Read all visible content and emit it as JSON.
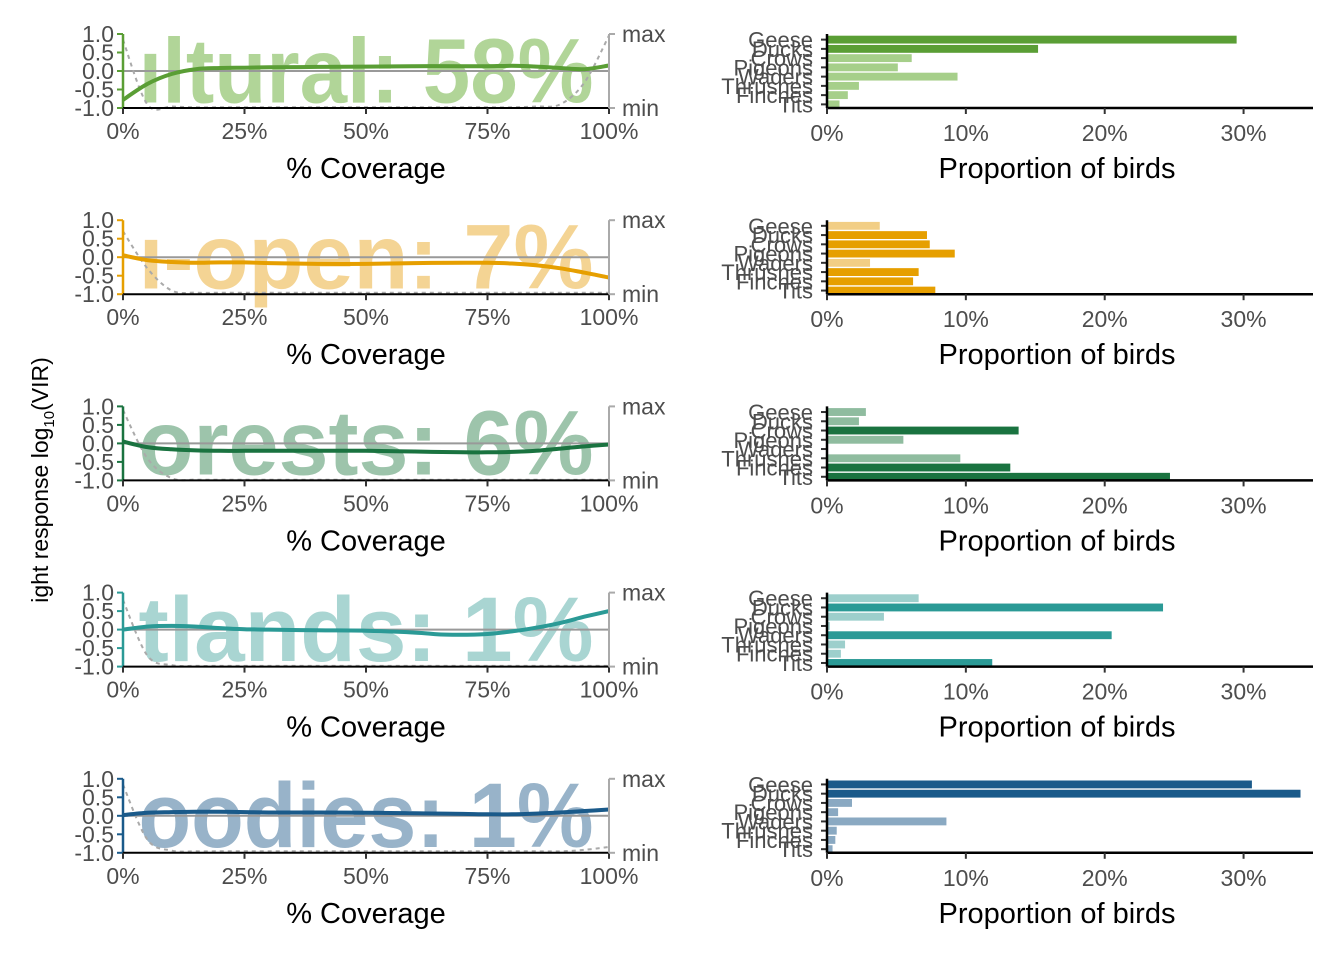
{
  "y_axis_label_main": "ight response log",
  "y_axis_label_sub": "10",
  "y_axis_label_end": "(VIR)",
  "left_xlabel": "% Coverage",
  "right_xlabel": "Proportion of birds",
  "left_x_ticks": [
    "0%",
    "25%",
    "50%",
    "75%",
    "100%"
  ],
  "left_y_ticks": [
    "1.0",
    "0.5",
    "0.0",
    "-0.5",
    "-1.0"
  ],
  "right_axis_ticks": [
    "max",
    "min"
  ],
  "right_x_ticks": [
    "0%",
    "10%",
    "20%",
    "30%"
  ],
  "bird_groups": [
    "Geese",
    "Ducks",
    "Crows",
    "Pigeons",
    "Waders",
    "Thrushes",
    "Finches",
    "Tits"
  ],
  "chart_data": [
    {
      "type": "line",
      "label": "ıltural: 58%",
      "color": "#5a9e35",
      "light_color": "#a6cf8a",
      "x": [
        0,
        5,
        10,
        15,
        20,
        25,
        30,
        40,
        50,
        60,
        70,
        75,
        80,
        85,
        90,
        95,
        100
      ],
      "y": [
        -0.78,
        -0.35,
        -0.08,
        0.05,
        0.08,
        0.09,
        0.1,
        0.11,
        0.12,
        0.13,
        0.13,
        0.13,
        0.14,
        0.12,
        0.08,
        0.05,
        0.15
      ],
      "coverage_dist": [
        0.92,
        0.05,
        0.02,
        0.01,
        0.01,
        0.01,
        0.01,
        0.01,
        0.01,
        0.01,
        0.01,
        0.01,
        0.01,
        0.02,
        0.05,
        0.35,
        0.98
      ],
      "xlim": [
        0,
        100
      ],
      "ylim": [
        -1.0,
        1.0
      ],
      "bars": {
        "Geese": 29.5,
        "Ducks": 15.2,
        "Crows": 6.1,
        "Pigeons": 5.1,
        "Waders": 9.4,
        "Thrushes": 2.3,
        "Finches": 1.5,
        "Tits": 0.9
      },
      "bars_xlim": [
        0,
        35
      ]
    },
    {
      "type": "line",
      "label": "ı-open: 7%",
      "color": "#e69f00",
      "light_color": "#f2ce85",
      "x": [
        0,
        5,
        10,
        15,
        20,
        25,
        30,
        40,
        50,
        60,
        70,
        75,
        80,
        85,
        90,
        95,
        100
      ],
      "y": [
        0.05,
        -0.08,
        -0.13,
        -0.15,
        -0.14,
        -0.14,
        -0.16,
        -0.18,
        -0.18,
        -0.16,
        -0.15,
        -0.15,
        -0.17,
        -0.22,
        -0.3,
        -0.42,
        -0.55
      ],
      "coverage_dist": [
        0.85,
        0.35,
        0.05,
        0.02,
        0.02,
        0.02,
        0.02,
        0.02,
        0.02,
        0.02,
        0.02,
        0.02,
        0.02,
        0.02,
        0.02,
        0.02,
        0.02
      ],
      "xlim": [
        0,
        100
      ],
      "ylim": [
        -1.0,
        1.0
      ],
      "bars": {
        "Geese": 3.8,
        "Ducks": 7.2,
        "Crows": 7.4,
        "Pigeons": 9.2,
        "Waders": 3.1,
        "Thrushes": 6.6,
        "Finches": 6.2,
        "Tits": 7.8
      },
      "bars_xlim": [
        0,
        35
      ]
    },
    {
      "type": "line",
      "label": "orests: 6%",
      "color": "#1a7340",
      "light_color": "#8fbc9f",
      "x": [
        0,
        5,
        10,
        15,
        20,
        25,
        30,
        40,
        50,
        60,
        70,
        75,
        80,
        85,
        90,
        95,
        100
      ],
      "y": [
        0.05,
        -0.1,
        -0.16,
        -0.19,
        -0.2,
        -0.2,
        -0.2,
        -0.2,
        -0.2,
        -0.22,
        -0.24,
        -0.24,
        -0.23,
        -0.2,
        -0.14,
        -0.08,
        -0.03
      ],
      "coverage_dist": [
        0.95,
        0.3,
        0.03,
        0.01,
        0.01,
        0.01,
        0.01,
        0.01,
        0.01,
        0.01,
        0.01,
        0.01,
        0.01,
        0.01,
        0.01,
        0.01,
        0.01
      ],
      "xlim": [
        0,
        100
      ],
      "ylim": [
        -1.0,
        1.0
      ],
      "bars": {
        "Geese": 2.8,
        "Ducks": 2.3,
        "Crows": 13.8,
        "Pigeons": 5.5,
        "Waders": 0.0,
        "Thrushes": 9.6,
        "Finches": 13.2,
        "Tits": 24.7
      },
      "bars_xlim": [
        0,
        35
      ]
    },
    {
      "type": "line",
      "label": "tlands: 1%",
      "color": "#2b9a96",
      "light_color": "#9dcfcc",
      "x": [
        0,
        5,
        10,
        15,
        20,
        25,
        30,
        40,
        50,
        60,
        65,
        70,
        75,
        80,
        85,
        90,
        95,
        100
      ],
      "y": [
        0.0,
        0.08,
        0.1,
        0.08,
        0.04,
        0.01,
        0.0,
        -0.02,
        -0.03,
        -0.08,
        -0.13,
        -0.14,
        -0.12,
        -0.05,
        0.05,
        0.18,
        0.35,
        0.5
      ],
      "coverage_dist": [
        0.9,
        0.15,
        0.02,
        0.01,
        0.01,
        0.01,
        0.01,
        0.01,
        0.01,
        0.01,
        0.01,
        0.01,
        0.01,
        0.01,
        0.01,
        0.01,
        0.01,
        0.01
      ],
      "xlim": [
        0,
        100
      ],
      "ylim": [
        -1.0,
        1.0
      ],
      "bars": {
        "Geese": 6.6,
        "Ducks": 24.2,
        "Crows": 4.1,
        "Pigeons": 0.2,
        "Waders": 20.5,
        "Thrushes": 1.3,
        "Finches": 1.0,
        "Tits": 11.9
      },
      "bars_xlim": [
        0,
        35
      ]
    },
    {
      "type": "line",
      "label": "oodies: 1%",
      "color": "#1a5a8a",
      "light_color": "#8aa9c2",
      "x": [
        0,
        5,
        10,
        15,
        20,
        25,
        30,
        40,
        50,
        60,
        70,
        75,
        80,
        85,
        90,
        95,
        100
      ],
      "y": [
        0.02,
        0.08,
        0.1,
        0.11,
        0.11,
        0.1,
        0.09,
        0.09,
        0.08,
        0.07,
        0.05,
        0.04,
        0.04,
        0.06,
        0.09,
        0.13,
        0.17
      ],
      "coverage_dist": [
        0.92,
        0.18,
        0.03,
        0.02,
        0.02,
        0.02,
        0.02,
        0.02,
        0.02,
        0.02,
        0.02,
        0.02,
        0.02,
        0.02,
        0.02,
        0.04,
        0.08
      ],
      "xlim": [
        0,
        100
      ],
      "ylim": [
        -1.0,
        1.0
      ],
      "bars": {
        "Geese": 30.6,
        "Ducks": 34.1,
        "Crows": 1.8,
        "Pigeons": 0.8,
        "Waders": 8.6,
        "Thrushes": 0.7,
        "Finches": 0.6,
        "Tits": 0.4
      },
      "bars_xlim": [
        0,
        35
      ]
    }
  ]
}
